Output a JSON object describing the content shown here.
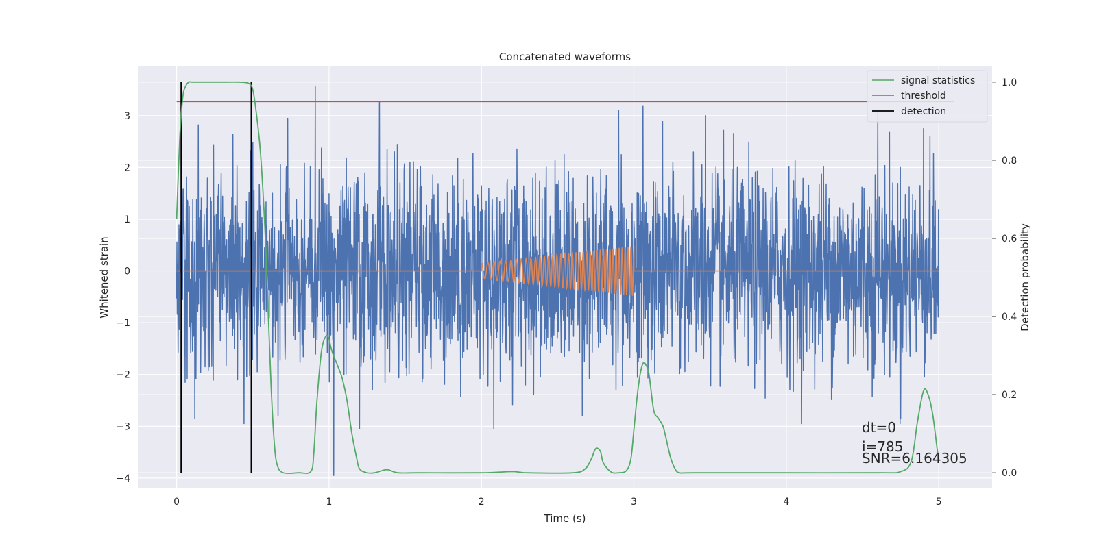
{
  "chart_data": {
    "type": "line",
    "title": "Concatenated waveforms",
    "xlabel": "Time (s)",
    "ylabel": "Whitened strain",
    "y2label": "Detection probability",
    "xlim": [
      -0.25,
      5.35
    ],
    "ylim": [
      -4.2,
      3.95
    ],
    "y2lim": [
      -0.04,
      1.04
    ],
    "xticks": [
      0,
      1,
      2,
      3,
      4,
      5
    ],
    "xtick_labels": [
      "0",
      "1",
      "2",
      "3",
      "4",
      "5"
    ],
    "yticks": [
      -4,
      -3,
      -2,
      -1,
      0,
      1,
      2,
      3
    ],
    "ytick_labels": [
      "−4",
      "−3",
      "−2",
      "−1",
      "0",
      "1",
      "2",
      "3"
    ],
    "y2ticks": [
      0.0,
      0.2,
      0.4,
      0.6,
      0.8,
      1.0
    ],
    "y2tick_labels": [
      "0.0",
      "0.2",
      "0.4",
      "0.6",
      "0.8",
      "1.0"
    ],
    "grid": true,
    "legend_position": "top-right",
    "series": [
      {
        "name": "",
        "kind": "noise",
        "axis": "left",
        "color": "#4c72b0",
        "x_range": [
          0,
          5
        ],
        "spikes": [
          {
            "x": 0.91,
            "y": 3.57
          },
          {
            "x": 1.03,
            "y": -3.95
          },
          {
            "x": 1.33,
            "y": 3.28
          },
          {
            "x": 1.2,
            "y": -3.05
          },
          {
            "x": 2.08,
            "y": -3.05
          },
          {
            "x": 2.9,
            "y": 3.1
          },
          {
            "x": 3.06,
            "y": 3.18
          },
          {
            "x": 3.47,
            "y": 3.0
          },
          {
            "x": 4.6,
            "y": 3.12
          },
          {
            "x": 4.75,
            "y": -2.85
          },
          {
            "x": 0.12,
            "y": -2.85
          },
          {
            "x": 4.9,
            "y": 2.75
          }
        ]
      },
      {
        "name": "",
        "kind": "chirp",
        "axis": "left",
        "color": "#dd8452",
        "x_range": [
          0,
          5
        ],
        "chirp_start": 2.0,
        "chirp_end": 3.0,
        "amp_start": 0.15,
        "amp_end": 0.48,
        "cycles": 38
      },
      {
        "name": "signal statistics",
        "axis": "right",
        "color": "#55a868",
        "x": [
          0,
          0.02,
          0.04,
          0.06,
          0.08,
          0.1,
          0.15,
          0.2,
          0.3,
          0.4,
          0.45,
          0.48,
          0.5,
          0.52,
          0.55,
          0.58,
          0.6,
          0.62,
          0.64,
          0.66,
          0.7,
          0.8,
          0.88,
          0.9,
          0.92,
          0.95,
          0.98,
          1.0,
          1.02,
          1.05,
          1.08,
          1.1,
          1.12,
          1.15,
          1.18,
          1.2,
          1.25,
          1.3,
          1.38,
          1.45,
          1.6,
          2.0,
          2.2,
          2.3,
          2.6,
          2.68,
          2.72,
          2.75,
          2.78,
          2.8,
          2.85,
          2.9,
          2.95,
          2.98,
          3.0,
          3.02,
          3.04,
          3.06,
          3.08,
          3.1,
          3.13,
          3.16,
          3.19,
          3.21,
          3.24,
          3.27,
          3.3,
          3.4,
          4.0,
          4.6,
          4.75,
          4.82,
          4.86,
          4.9,
          4.93,
          4.96,
          4.99,
          5.0
        ],
        "y": [
          0.65,
          0.85,
          0.96,
          0.99,
          1.0,
          1.0,
          1.0,
          1.0,
          1.0,
          1.0,
          0.999,
          0.995,
          0.98,
          0.93,
          0.82,
          0.62,
          0.42,
          0.22,
          0.08,
          0.02,
          0.0,
          0.0,
          0.003,
          0.05,
          0.18,
          0.31,
          0.35,
          0.34,
          0.31,
          0.28,
          0.25,
          0.22,
          0.18,
          0.1,
          0.04,
          0.01,
          0.0,
          0.0,
          0.008,
          0.0,
          0.0,
          0.0,
          0.003,
          0.0,
          0.0,
          0.01,
          0.035,
          0.062,
          0.055,
          0.025,
          0.002,
          0.0,
          0.005,
          0.035,
          0.11,
          0.19,
          0.25,
          0.28,
          0.275,
          0.25,
          0.16,
          0.14,
          0.12,
          0.09,
          0.04,
          0.01,
          0.0,
          0.0,
          0.0,
          0.0,
          0.003,
          0.03,
          0.13,
          0.21,
          0.2,
          0.15,
          0.06,
          0.04
        ]
      },
      {
        "name": "threshold",
        "axis": "right",
        "color": "#c44e52",
        "x": [
          0,
          5.1
        ],
        "y": [
          0.95,
          0.95
        ]
      },
      {
        "name": "detection",
        "axis": "right",
        "color": "#000000",
        "vlines": [
          0.03,
          0.49
        ],
        "vline_range": [
          0.0,
          1.0
        ]
      }
    ],
    "annotations": [
      "dt=0",
      "i=785",
      "SNR=6.164305"
    ]
  }
}
